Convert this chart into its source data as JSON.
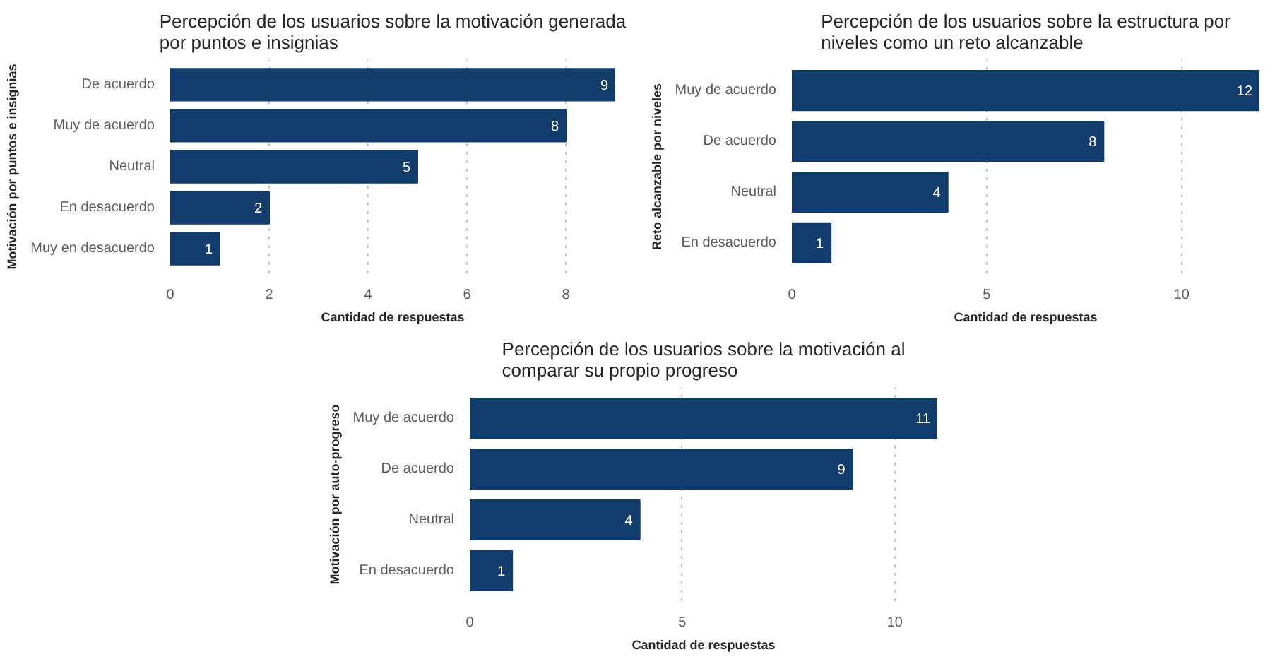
{
  "chart_data": [
    {
      "type": "bar",
      "orientation": "horizontal",
      "title": "Percepción de los usuarios sobre la motivación generada por puntos e insignias",
      "xlabel": "Cantidad de respuestas",
      "ylabel": "Motivación por puntos e insignias",
      "categories": [
        "De acuerdo",
        "Muy de acuerdo",
        "Neutral",
        "En desacuerdo",
        "Muy en desacuerdo"
      ],
      "values": [
        9,
        8,
        5,
        2,
        1
      ],
      "color": "#123c6b",
      "xlim": [
        0,
        9
      ],
      "xticks": [
        0,
        2,
        4,
        6,
        8
      ],
      "grid": "x",
      "data_labels": true
    },
    {
      "type": "bar",
      "orientation": "horizontal",
      "title": "Percepción de los usuarios sobre la estructura por niveles como un reto alcanzable",
      "xlabel": "Cantidad de respuestas",
      "ylabel": "Reto alcanzable por niveles",
      "categories": [
        "Muy de acuerdo",
        "De acuerdo",
        "Neutral",
        "En desacuerdo"
      ],
      "values": [
        12,
        8,
        4,
        1
      ],
      "color": "#123c6b",
      "xlim": [
        0,
        12
      ],
      "xticks": [
        0,
        5,
        10
      ],
      "grid": "x",
      "data_labels": true
    },
    {
      "type": "bar",
      "orientation": "horizontal",
      "title": "Percepción de los usuarios sobre la motivación al comparar su propio progreso",
      "xlabel": "Cantidad de respuestas",
      "ylabel": "Motivación por auto-progreso",
      "categories": [
        "Muy de acuerdo",
        "De acuerdo",
        "Neutral",
        "En desacuerdo"
      ],
      "values": [
        11,
        9,
        4,
        1
      ],
      "color": "#123c6b",
      "xlim": [
        0,
        11
      ],
      "xticks": [
        0,
        5,
        10
      ],
      "grid": "x",
      "data_labels": true
    }
  ]
}
